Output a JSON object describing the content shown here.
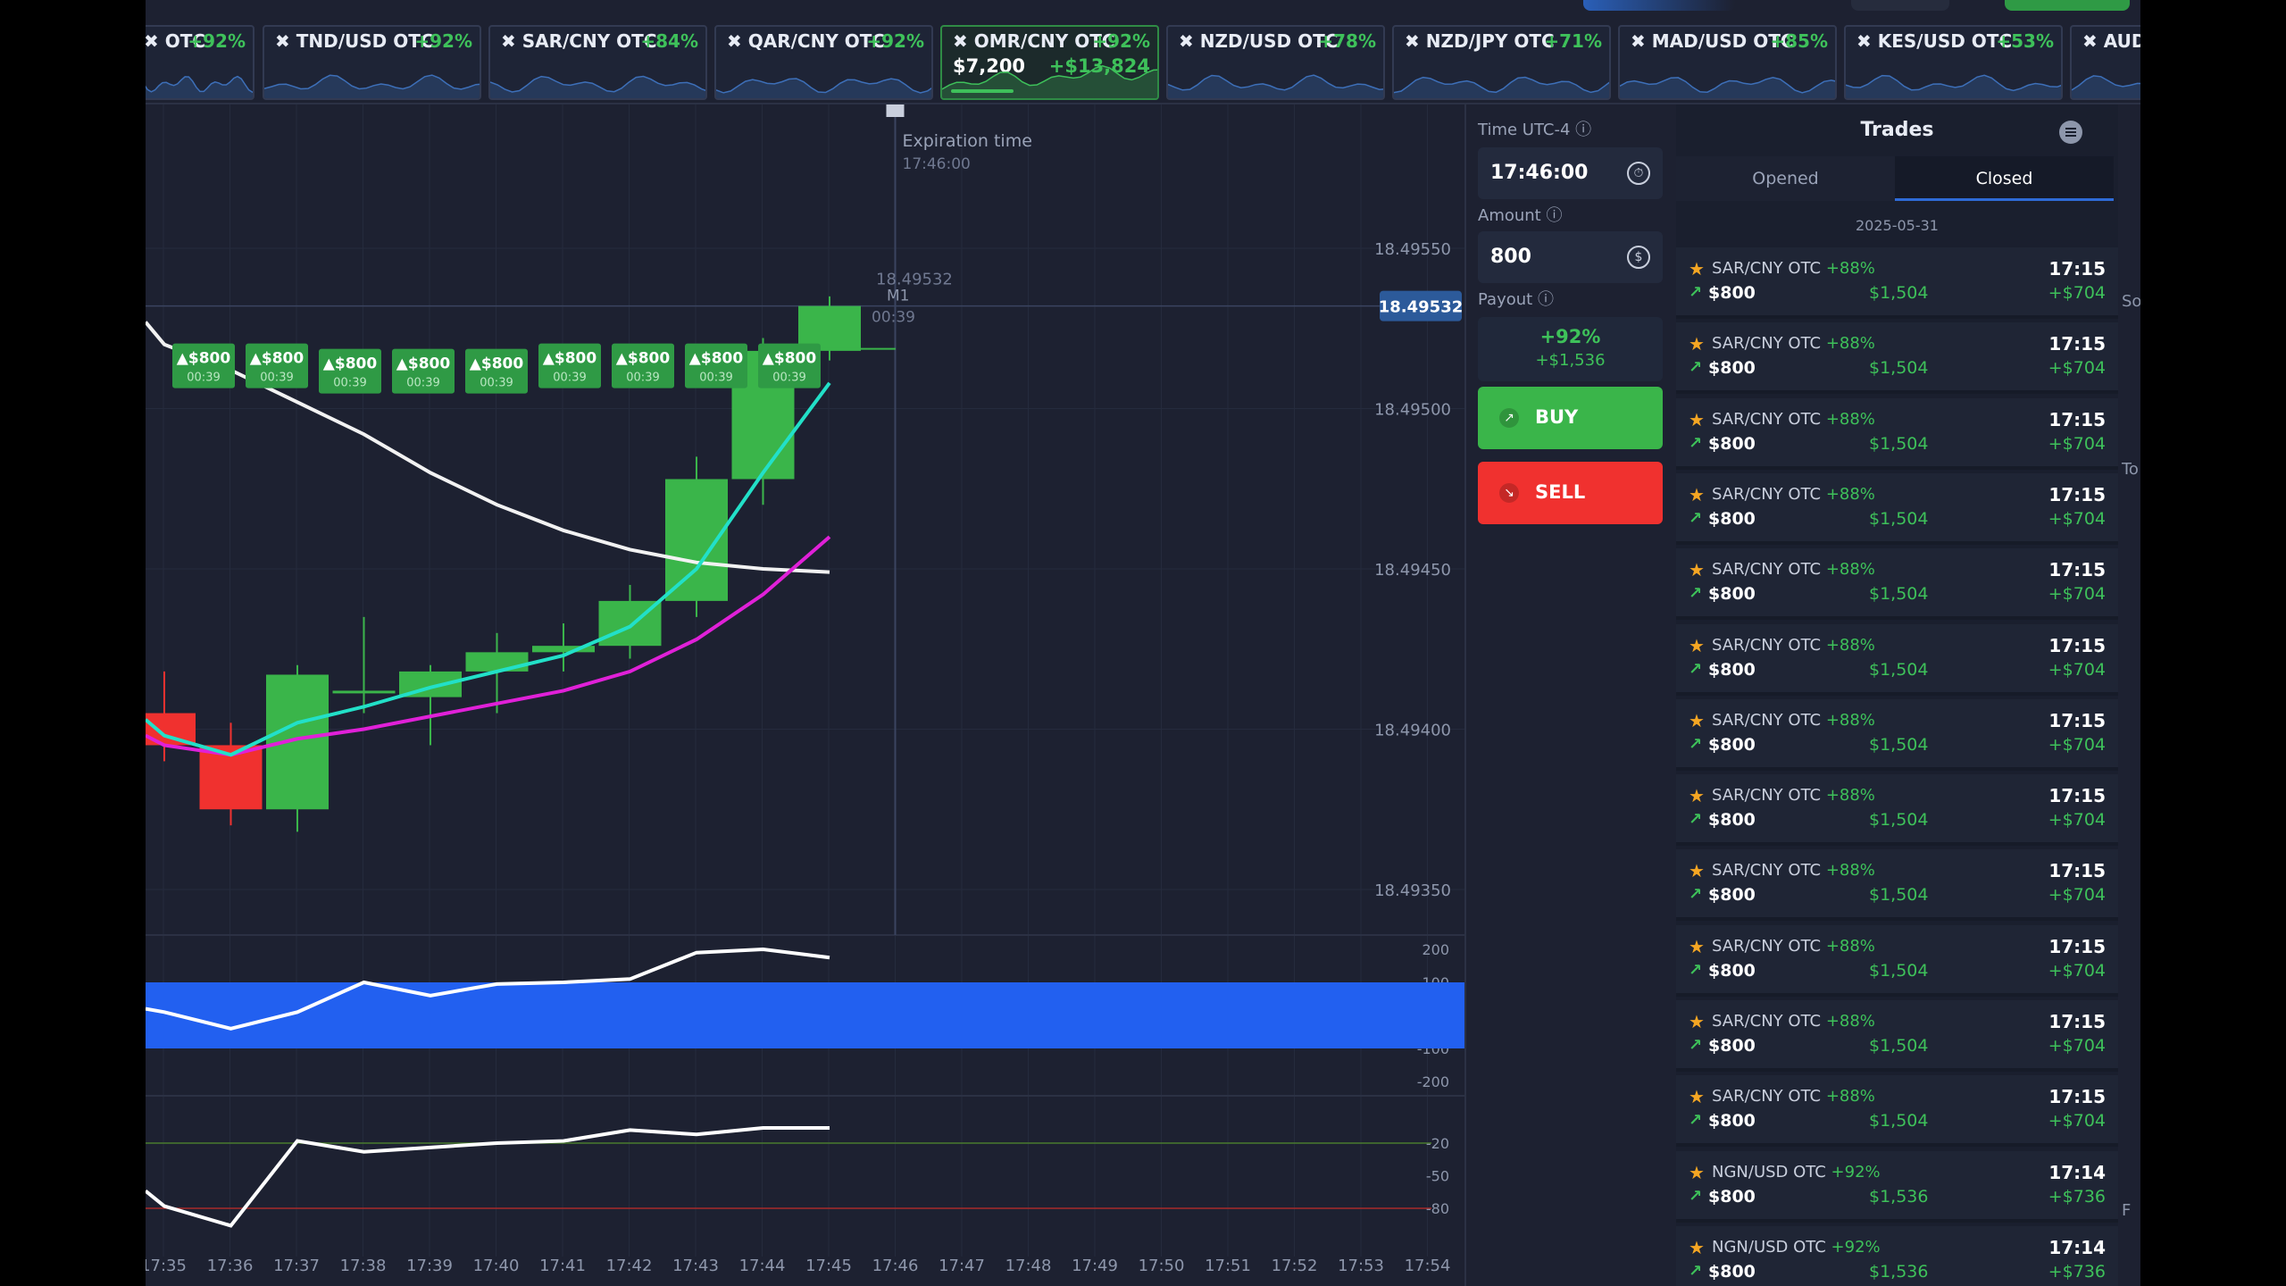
{
  "assets": [
    {
      "name": "OTC",
      "pct": "+92%",
      "left": 0,
      "width": 125
    },
    {
      "name": "TND/USD OTC",
      "pct": "+92%"
    },
    {
      "name": "SAR/CNY OTC",
      "pct": "+84%"
    },
    {
      "name": "QAR/CNY OTC",
      "pct": "+92%"
    },
    {
      "name": "OMR/CNY OTC",
      "pct": "+92%",
      "amount": "$7,200",
      "profit": "+$13,824",
      "active": true
    },
    {
      "name": "NZD/USD OTC",
      "pct": "+78%"
    },
    {
      "name": "NZD/JPY OTC",
      "pct": "+71%"
    },
    {
      "name": "MAD/USD OTC",
      "pct": "+85%"
    },
    {
      "name": "KES/USD OTC",
      "pct": "+53%"
    },
    {
      "name": "AUD/",
      "pct": ""
    }
  ],
  "chart": {
    "expiration_label": "Expiration time",
    "expiration_time": "17:46:00",
    "current_price": "18.49532",
    "timeframe": "M1",
    "countdown": "00:39",
    "price_ticks": [
      "18.49550",
      "18.49500",
      "18.49450",
      "18.49400",
      "18.49350"
    ],
    "time_ticks": [
      "17:35",
      "17:36",
      "17:37",
      "17:38",
      "17:39",
      "17:40",
      "17:41",
      "17:42",
      "17:43",
      "17:44",
      "17:45",
      "17:46",
      "17:47",
      "17:48",
      "17:49",
      "17:50",
      "17:51",
      "17:52",
      "17:53",
      "17:54"
    ],
    "cci_ticks": [
      "200",
      "100",
      "-100",
      "-200"
    ],
    "wpr_ticks": [
      "-20",
      "-50",
      "-80"
    ],
    "trade_marker_amount": "$800",
    "trade_marker_time": "00:39",
    "candles": [
      {
        "o": 18.49405,
        "c": 18.49395,
        "h": 18.49418,
        "l": 18.4939
      },
      {
        "o": 18.49395,
        "c": 18.49375,
        "h": 18.49402,
        "l": 18.4937
      },
      {
        "o": 18.49375,
        "c": 18.49417,
        "h": 18.4942,
        "l": 18.49368
      },
      {
        "o": 18.49412,
        "c": 18.49412,
        "h": 18.49435,
        "l": 18.49405
      },
      {
        "o": 18.4941,
        "c": 18.49418,
        "h": 18.4942,
        "l": 18.49395
      },
      {
        "o": 18.49418,
        "c": 18.49424,
        "h": 18.4943,
        "l": 18.49405
      },
      {
        "o": 18.49424,
        "c": 18.49426,
        "h": 18.49433,
        "l": 18.49418
      },
      {
        "o": 18.49426,
        "c": 18.4944,
        "h": 18.49445,
        "l": 18.49422
      },
      {
        "o": 18.4944,
        "c": 18.49478,
        "h": 18.49485,
        "l": 18.49435
      },
      {
        "o": 18.49478,
        "c": 18.49518,
        "h": 18.49522,
        "l": 18.4947
      },
      {
        "o": 18.49518,
        "c": 18.49532,
        "h": 18.49535,
        "l": 18.49515
      }
    ]
  },
  "trade_panel": {
    "time_label": "Time UTC-4",
    "time_value": "17:46:00",
    "amount_label": "Amount",
    "amount_value": "800",
    "payout_label": "Payout",
    "payout_pct": "+92%",
    "payout_amount": "+$1,536",
    "buy_label": "BUY",
    "sell_label": "SELL"
  },
  "trades": {
    "title": "Trades",
    "tab_opened": "Opened",
    "tab_closed": "Closed",
    "date": "2025-05-31",
    "rows": [
      {
        "pair": "SAR/CNY OTC",
        "pct": "+88%",
        "time": "17:15",
        "amount": "$800",
        "return": "$1,504",
        "profit": "+$704"
      },
      {
        "pair": "SAR/CNY OTC",
        "pct": "+88%",
        "time": "17:15",
        "amount": "$800",
        "return": "$1,504",
        "profit": "+$704"
      },
      {
        "pair": "SAR/CNY OTC",
        "pct": "+88%",
        "time": "17:15",
        "amount": "$800",
        "return": "$1,504",
        "profit": "+$704"
      },
      {
        "pair": "SAR/CNY OTC",
        "pct": "+88%",
        "time": "17:15",
        "amount": "$800",
        "return": "$1,504",
        "profit": "+$704"
      },
      {
        "pair": "SAR/CNY OTC",
        "pct": "+88%",
        "time": "17:15",
        "amount": "$800",
        "return": "$1,504",
        "profit": "+$704"
      },
      {
        "pair": "SAR/CNY OTC",
        "pct": "+88%",
        "time": "17:15",
        "amount": "$800",
        "return": "$1,504",
        "profit": "+$704"
      },
      {
        "pair": "SAR/CNY OTC",
        "pct": "+88%",
        "time": "17:15",
        "amount": "$800",
        "return": "$1,504",
        "profit": "+$704"
      },
      {
        "pair": "SAR/CNY OTC",
        "pct": "+88%",
        "time": "17:15",
        "amount": "$800",
        "return": "$1,504",
        "profit": "+$704"
      },
      {
        "pair": "SAR/CNY OTC",
        "pct": "+88%",
        "time": "17:15",
        "amount": "$800",
        "return": "$1,504",
        "profit": "+$704"
      },
      {
        "pair": "SAR/CNY OTC",
        "pct": "+88%",
        "time": "17:15",
        "amount": "$800",
        "return": "$1,504",
        "profit": "+$704"
      },
      {
        "pair": "SAR/CNY OTC",
        "pct": "+88%",
        "time": "17:15",
        "amount": "$800",
        "return": "$1,504",
        "profit": "+$704"
      },
      {
        "pair": "SAR/CNY OTC",
        "pct": "+88%",
        "time": "17:15",
        "amount": "$800",
        "return": "$1,504",
        "profit": "+$704"
      },
      {
        "pair": "NGN/USD OTC",
        "pct": "+92%",
        "time": "17:14",
        "amount": "$800",
        "return": "$1,536",
        "profit": "+$736"
      },
      {
        "pair": "NGN/USD OTC",
        "pct": "+92%",
        "time": "17:14",
        "amount": "$800",
        "return": "$1,536",
        "profit": "+$736"
      }
    ]
  },
  "right_strip": [
    "So",
    "To",
    "F"
  ],
  "colors": {
    "up": "#3ab54a",
    "down": "#f0312f",
    "accent": "#2e6bd7",
    "bg": "#1d2131"
  }
}
